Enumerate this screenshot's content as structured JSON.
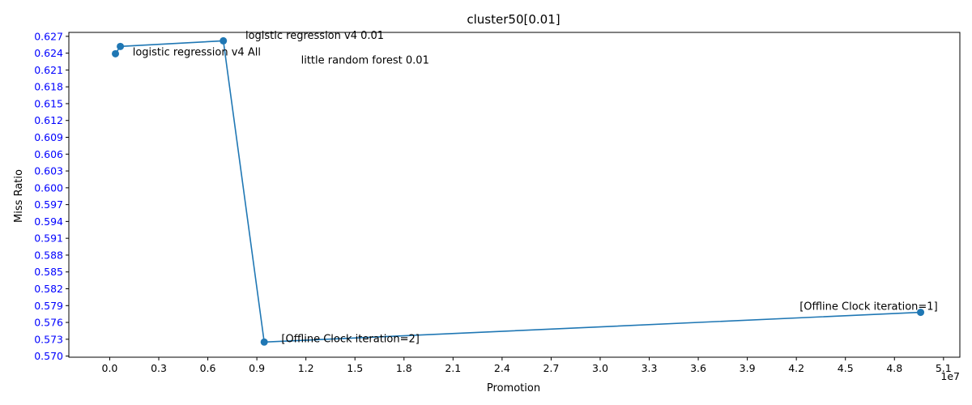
{
  "chart_data": {
    "type": "line",
    "title": "cluster50[0.01]",
    "xlabel": "Promotion",
    "ylabel": "Miss Ratio",
    "x_offset_label": "1e7",
    "x_multiplier": 10000000,
    "xlim": [
      -0.25,
      5.2
    ],
    "ylim": [
      0.5698,
      0.6277
    ],
    "x_ticks": [
      0.0,
      0.3,
      0.6,
      0.9,
      1.2,
      1.5,
      1.8,
      2.1,
      2.4,
      2.7,
      3.0,
      3.3,
      3.6,
      3.9,
      4.2,
      4.5,
      4.8,
      5.1
    ],
    "x_tick_labels": [
      "0.0",
      "0.3",
      "0.6",
      "0.9",
      "1.2",
      "1.5",
      "1.8",
      "2.1",
      "2.4",
      "2.7",
      "3.0",
      "3.3",
      "3.6",
      "3.9",
      "4.2",
      "4.5",
      "4.8",
      "5.1"
    ],
    "y_ticks": [
      0.57,
      0.573,
      0.576,
      0.579,
      0.582,
      0.585,
      0.588,
      0.591,
      0.594,
      0.597,
      0.6,
      0.603,
      0.606,
      0.609,
      0.612,
      0.615,
      0.618,
      0.621,
      0.624,
      0.627
    ],
    "y_tick_labels": [
      "0.570",
      "0.573",
      "0.576",
      "0.579",
      "0.582",
      "0.585",
      "0.588",
      "0.591",
      "0.594",
      "0.597",
      "0.600",
      "0.603",
      "0.606",
      "0.609",
      "0.612",
      "0.615",
      "0.618",
      "0.621",
      "0.624",
      "0.627"
    ],
    "series": [
      {
        "color": "#1f77b4",
        "marker": "circle",
        "points": [
          {
            "x": 0.035,
            "y": 0.6239
          },
          {
            "x": 0.065,
            "y": 0.6252
          },
          {
            "x": 0.695,
            "y": 0.6262
          },
          {
            "x": 0.945,
            "y": 0.5725
          },
          {
            "x": 4.96,
            "y": 0.5778
          }
        ]
      }
    ],
    "annotations": [
      {
        "text": "logistic regression v4 0.01",
        "x": 0.83,
        "y": 0.6272
      },
      {
        "text": "logistic regression v4 All",
        "x": 0.14,
        "y": 0.6242
      },
      {
        "text": "little random forest 0.01",
        "x": 1.17,
        "y": 0.6228
      },
      {
        "text": "[Offline Clock iteration=2]",
        "x": 1.05,
        "y": 0.5731
      },
      {
        "text": "[Offline Clock iteration=1]",
        "x": 4.22,
        "y": 0.5789
      }
    ],
    "grid": false,
    "legend": "none"
  }
}
